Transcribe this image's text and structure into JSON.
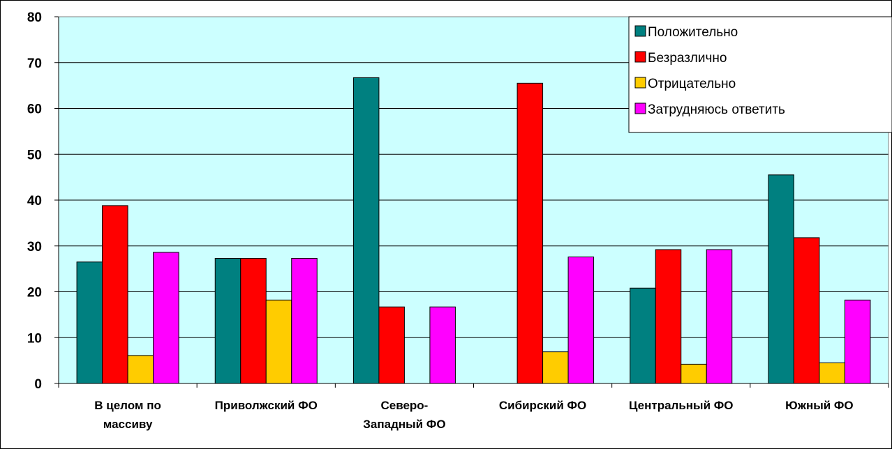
{
  "chart_data": {
    "type": "bar",
    "categories": [
      [
        "В целом по",
        "массиву"
      ],
      [
        "Приволжский ФО"
      ],
      [
        "Северо-",
        "Западный ФО"
      ],
      [
        "Сибирский ФО"
      ],
      [
        "Центральный ФО"
      ],
      [
        "Южный ФО"
      ]
    ],
    "series": [
      {
        "name": "Положительно",
        "color": "#008080",
        "values": [
          26.5,
          27.3,
          66.7,
          0,
          20.8,
          45.5
        ]
      },
      {
        "name": "Безразлично",
        "color": "#ff0000",
        "values": [
          38.8,
          27.3,
          16.7,
          65.5,
          29.2,
          31.8
        ]
      },
      {
        "name": "Отрицательно",
        "color": "#ffcc00",
        "values": [
          6.1,
          18.2,
          0,
          6.9,
          4.2,
          4.5
        ]
      },
      {
        "name": "Затрудняюсь ответить",
        "color": "#ff00ff",
        "values": [
          28.6,
          27.3,
          16.7,
          27.6,
          29.2,
          18.2
        ]
      }
    ],
    "ylim": [
      0,
      80
    ],
    "yticks": [
      0,
      10,
      20,
      30,
      40,
      50,
      60,
      70,
      80
    ],
    "grid": true,
    "legend_position": "top-right",
    "plot_background": "#ccffff",
    "title": "",
    "xlabel": "",
    "ylabel": ""
  }
}
